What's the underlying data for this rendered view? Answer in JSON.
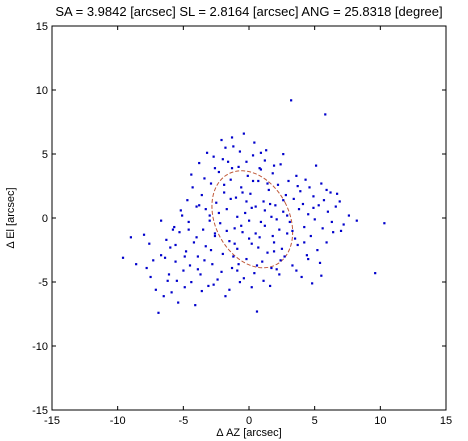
{
  "chart_data": {
    "type": "scatter",
    "title": "SA = 3.9842 [arcsec]  SL = 2.8164 [arcsec]  ANG = 25.8318 [degree]",
    "xlabel": "Δ AZ [arcsec]",
    "ylabel": "Δ El [arcsec]",
    "xlim": [
      -15,
      15
    ],
    "ylim": [
      -15,
      15
    ],
    "xticks": [
      -15,
      -10,
      -5,
      0,
      5,
      10,
      15
    ],
    "yticks": [
      -15,
      -10,
      -5,
      0,
      5,
      10,
      15
    ],
    "grid": false,
    "colors": {
      "points": "#0000cc",
      "ellipse": "#c05a3a",
      "axes": "#000000"
    },
    "ellipse": {
      "center": [
        0.25,
        -0.1
      ],
      "semi_major": 3.9842,
      "semi_minor": 2.8164,
      "angle_deg": 25.8318,
      "style": "dashed"
    },
    "series": [
      {
        "points": [
          [
            -9.6,
            -3.1
          ],
          [
            -9.0,
            -1.5
          ],
          [
            -8.6,
            -3.6
          ],
          [
            -8.0,
            -1.3
          ],
          [
            -7.8,
            -3.9
          ],
          [
            -7.5,
            -4.6
          ],
          [
            -7.3,
            -3.3
          ],
          [
            -7.1,
            -5.6
          ],
          [
            -6.9,
            -7.4
          ],
          [
            -6.7,
            -2.9
          ],
          [
            -6.5,
            -6.1
          ],
          [
            -6.3,
            -1.7
          ],
          [
            -6.2,
            -4.9
          ],
          [
            -6.0,
            -2.3
          ],
          [
            -5.9,
            -5.8
          ],
          [
            -5.7,
            -0.7
          ],
          [
            -5.6,
            -3.4
          ],
          [
            -5.4,
            -6.6
          ],
          [
            -5.3,
            -1.1
          ],
          [
            -5.2,
            0.6
          ],
          [
            -5.0,
            -4.1
          ],
          [
            -4.9,
            -5.4
          ],
          [
            -4.8,
            -2.6
          ],
          [
            -4.7,
            1.4
          ],
          [
            -4.6,
            -0.3
          ],
          [
            -4.5,
            -3.7
          ],
          [
            -4.4,
            -5.0
          ],
          [
            -4.3,
            2.4
          ],
          [
            -4.2,
            -1.9
          ],
          [
            -4.1,
            -6.8
          ],
          [
            -4.0,
            0.9
          ],
          [
            -3.9,
            -3.0
          ],
          [
            -3.8,
            4.3
          ],
          [
            -3.7,
            -4.4
          ],
          [
            -3.6,
            1.8
          ],
          [
            -3.5,
            -0.9
          ],
          [
            -3.4,
            3.1
          ],
          [
            -3.3,
            -2.2
          ],
          [
            -3.2,
            5.1
          ],
          [
            -3.1,
            -5.3
          ],
          [
            -3.0,
            0.2
          ],
          [
            -2.9,
            2.7
          ],
          [
            -2.8,
            -3.6
          ],
          [
            -2.7,
            4.8
          ],
          [
            -2.6,
            -1.4
          ],
          [
            -2.5,
            1.2
          ],
          [
            -2.4,
            -4.8
          ],
          [
            -2.3,
            3.6
          ],
          [
            -2.2,
            -0.4
          ],
          [
            -2.1,
            6.1
          ],
          [
            -2.0,
            -2.8
          ],
          [
            -1.9,
            2.0
          ],
          [
            -1.8,
            -6.1
          ],
          [
            -1.7,
            0.7
          ],
          [
            -1.6,
            4.4
          ],
          [
            -1.5,
            -1.8
          ],
          [
            -1.4,
            3.0
          ],
          [
            -1.3,
            -3.9
          ],
          [
            -1.2,
            5.6
          ],
          [
            -1.1,
            -0.8
          ],
          [
            -1.0,
            1.6
          ],
          [
            -0.9,
            -2.4
          ],
          [
            -0.8,
            4.0
          ],
          [
            -0.7,
            -5.0
          ],
          [
            -0.6,
            2.4
          ],
          [
            -0.5,
            -1.1
          ],
          [
            -0.4,
            6.6
          ],
          [
            -0.3,
            0.4
          ],
          [
            -0.2,
            -3.2
          ],
          [
            -0.1,
            3.3
          ],
          [
            0.0,
            -0.2
          ],
          [
            0.1,
            1.9
          ],
          [
            0.2,
            -2.0
          ],
          [
            0.3,
            4.9
          ],
          [
            0.4,
            -4.3
          ],
          [
            0.5,
            0.9
          ],
          [
            0.6,
            -7.3
          ],
          [
            0.7,
            2.9
          ],
          [
            0.8,
            -1.5
          ],
          [
            0.9,
            3.8
          ],
          [
            1.0,
            -3.4
          ],
          [
            1.1,
            1.3
          ],
          [
            1.2,
            -0.6
          ],
          [
            1.3,
            5.3
          ],
          [
            1.4,
            -2.7
          ],
          [
            1.5,
            2.2
          ],
          [
            1.6,
            -5.3
          ],
          [
            1.7,
            0.1
          ],
          [
            1.8,
            3.5
          ],
          [
            1.9,
            -1.9
          ],
          [
            2.0,
            1.0
          ],
          [
            2.1,
            -4.0
          ],
          [
            2.2,
            2.6
          ],
          [
            2.3,
            -0.9
          ],
          [
            2.4,
            4.2
          ],
          [
            2.5,
            -2.4
          ],
          [
            2.6,
            0.5
          ],
          [
            2.7,
            -3.0
          ],
          [
            2.8,
            1.8
          ],
          [
            2.9,
            -1.2
          ],
          [
            3.0,
            2.9
          ],
          [
            3.1,
            -0.3
          ],
          [
            3.2,
            9.2
          ],
          [
            3.3,
            -3.7
          ],
          [
            3.4,
            1.5
          ],
          [
            3.5,
            -1.6
          ],
          [
            3.6,
            3.3
          ],
          [
            3.7,
            -2.1
          ],
          [
            3.8,
            0.7
          ],
          [
            3.9,
            2.1
          ],
          [
            4.0,
            -4.6
          ],
          [
            4.1,
            1.1
          ],
          [
            4.2,
            -0.7
          ],
          [
            4.3,
            3.0
          ],
          [
            4.4,
            -2.9
          ],
          [
            4.5,
            0.3
          ],
          [
            4.6,
            2.4
          ],
          [
            4.7,
            -1.4
          ],
          [
            4.8,
            -5.1
          ],
          [
            4.9,
            1.7
          ],
          [
            5.0,
            -0.1
          ],
          [
            5.1,
            4.1
          ],
          [
            5.2,
            -2.5
          ],
          [
            5.3,
            1.0
          ],
          [
            5.4,
            -3.5
          ],
          [
            5.5,
            2.7
          ],
          [
            5.6,
            -0.8
          ],
          [
            5.7,
            1.4
          ],
          [
            5.8,
            8.1
          ],
          [
            5.9,
            -1.9
          ],
          [
            6.0,
            0.5
          ],
          [
            6.2,
            2.0
          ],
          [
            6.4,
            -1.1
          ],
          [
            6.6,
            0.9
          ],
          [
            6.9,
            1.3
          ],
          [
            7.2,
            -0.5
          ],
          [
            7.6,
            0.2
          ],
          [
            8.2,
            -0.2
          ],
          [
            9.6,
            -4.3
          ],
          [
            10.3,
            -0.4
          ],
          [
            -1.4,
            1.5
          ],
          [
            -0.6,
            -0.6
          ],
          [
            0.2,
            0.8
          ],
          [
            0.9,
            -0.3
          ],
          [
            1.6,
            1.1
          ],
          [
            -0.9,
            0.1
          ],
          [
            0.5,
            -1.2
          ],
          [
            1.2,
            0.6
          ],
          [
            -0.2,
            1.3
          ],
          [
            0.7,
            -2.3
          ],
          [
            -1.7,
            -1.0
          ],
          [
            2.1,
            -0.1
          ],
          [
            -0.5,
            2.0
          ],
          [
            1.8,
            -1.4
          ],
          [
            -1.1,
            -2.0
          ],
          [
            2.6,
            1.4
          ],
          [
            -2.3,
            0.4
          ],
          [
            0.0,
            -1.6
          ],
          [
            1.4,
            2.7
          ],
          [
            -0.8,
            -3.6
          ],
          [
            2.9,
            0.2
          ],
          [
            -2.6,
            -1.2
          ],
          [
            0.3,
            2.9
          ],
          [
            1.9,
            -2.6
          ],
          [
            -1.9,
            2.6
          ],
          [
            3.3,
            -1.0
          ],
          [
            -3.0,
            -0.2
          ],
          [
            0.8,
            3.9
          ],
          [
            2.4,
            -3.3
          ],
          [
            -1.3,
            3.9
          ],
          [
            -4.4,
            3.4
          ],
          [
            -3.6,
            -5.7
          ],
          [
            -2.0,
            4.6
          ],
          [
            -5.6,
            -2.1
          ],
          [
            -6.4,
            -3.1
          ],
          [
            -7.6,
            -2.0
          ],
          [
            -3.9,
            -4.0
          ],
          [
            -5.1,
            0.2
          ],
          [
            -2.7,
            -5.2
          ],
          [
            -4.6,
            -0.9
          ],
          [
            -3.3,
            0.7
          ],
          [
            -6.1,
            -4.4
          ],
          [
            -5.5,
            -4.9
          ],
          [
            -2.9,
            -2.5
          ],
          [
            -4.0,
            -1.5
          ],
          [
            -3.4,
            -3.3
          ],
          [
            -6.7,
            -0.2
          ],
          [
            -5.8,
            -0.9
          ],
          [
            -4.9,
            -3.0
          ],
          [
            -3.8,
            1.0
          ],
          [
            3.6,
            -4.1
          ],
          [
            4.5,
            -3.2
          ],
          [
            5.5,
            -4.5
          ],
          [
            6.3,
            -0.3
          ],
          [
            4.9,
            0.8
          ],
          [
            5.9,
            2.2
          ],
          [
            6.7,
            1.9
          ],
          [
            7.0,
            -1.0
          ],
          [
            4.2,
            -1.9
          ],
          [
            3.7,
            2.5
          ],
          [
            2.6,
            5.0
          ],
          [
            1.2,
            4.5
          ],
          [
            -0.7,
            5.2
          ],
          [
            -1.8,
            5.5
          ],
          [
            -2.6,
            3.9
          ],
          [
            0.4,
            5.9
          ],
          [
            1.9,
            4.1
          ],
          [
            -0.2,
            4.4
          ],
          [
            -1.3,
            6.3
          ],
          [
            0.9,
            5.1
          ],
          [
            -0.4,
            -4.7
          ],
          [
            1.1,
            -4.9
          ],
          [
            -1.5,
            -5.6
          ],
          [
            0.2,
            -5.4
          ],
          [
            1.7,
            -3.9
          ],
          [
            -0.9,
            -4.1
          ],
          [
            2.3,
            -4.4
          ],
          [
            -2.1,
            -4.2
          ],
          [
            0.6,
            -3.7
          ],
          [
            -1.2,
            -3.0
          ]
        ]
      }
    ]
  }
}
